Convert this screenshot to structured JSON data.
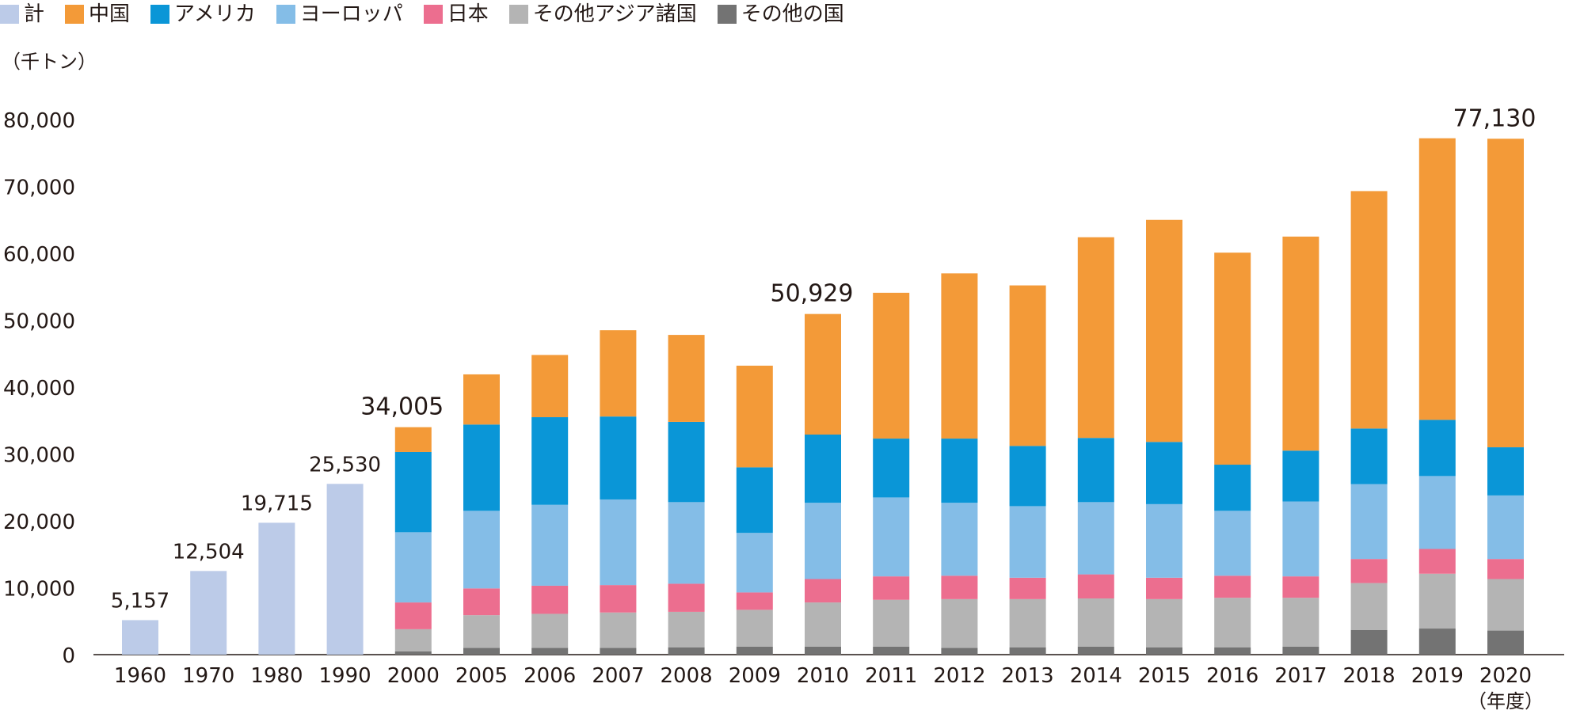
{
  "legend": [
    {
      "label": "計",
      "color": "#bccbe8"
    },
    {
      "label": "中国",
      "color": "#f39a38"
    },
    {
      "label": "アメリカ",
      "color": "#0a96d7"
    },
    {
      "label": "ヨーロッパ",
      "color": "#84bde7"
    },
    {
      "label": "日本",
      "color": "#ec6e8f"
    },
    {
      "label": "その他アジア諸国",
      "color": "#b4b4b4"
    },
    {
      "label": "その他の国",
      "color": "#737373"
    }
  ],
  "chart_data": {
    "type": "bar",
    "stacked": true,
    "unit_label": "（千トン）",
    "xlabel": "（年度）",
    "ylim": [
      0,
      80000
    ],
    "yticks": [
      0,
      10000,
      20000,
      30000,
      40000,
      50000,
      60000,
      70000,
      80000
    ],
    "ytick_labels": [
      "0",
      "10,000",
      "20,000",
      "30,000",
      "40,000",
      "50,000",
      "60,000",
      "70,000",
      "80,000"
    ],
    "categories": [
      "1960",
      "1970",
      "1980",
      "1990",
      "2000",
      "2005",
      "2006",
      "2007",
      "2008",
      "2009",
      "2010",
      "2011",
      "2012",
      "2013",
      "2014",
      "2015",
      "2016",
      "2017",
      "2018",
      "2019",
      "2020"
    ],
    "series": [
      {
        "name": "その他の国",
        "color": "#737373",
        "values": [
          null,
          null,
          null,
          null,
          500,
          1000,
          1000,
          1000,
          1100,
          1200,
          1200,
          1200,
          1000,
          1100,
          1200,
          1100,
          1100,
          1200,
          3700,
          3900,
          3600
        ]
      },
      {
        "name": "その他アジア諸国",
        "color": "#b4b4b4",
        "values": [
          null,
          null,
          null,
          null,
          3300,
          4900,
          5100,
          5300,
          5300,
          5500,
          6600,
          7000,
          7300,
          7200,
          7200,
          7200,
          7400,
          7300,
          7000,
          8200,
          7700
        ]
      },
      {
        "name": "日本",
        "color": "#ec6e8f",
        "values": [
          null,
          null,
          null,
          null,
          4000,
          4000,
          4200,
          4100,
          4200,
          2600,
          3500,
          3500,
          3500,
          3200,
          3600,
          3200,
          3300,
          3200,
          3600,
          3700,
          3000
        ]
      },
      {
        "name": "ヨーロッパ",
        "color": "#84bde7",
        "values": [
          null,
          null,
          null,
          null,
          10500,
          11600,
          12100,
          12800,
          12200,
          8900,
          11400,
          11800,
          10900,
          10700,
          10800,
          11000,
          9700,
          11200,
          11200,
          10900,
          9500
        ]
      },
      {
        "name": "アメリカ",
        "color": "#0a96d7",
        "values": [
          null,
          null,
          null,
          null,
          12000,
          12900,
          13100,
          12400,
          12000,
          9800,
          10200,
          8800,
          9600,
          9000,
          9600,
          9300,
          6900,
          7600,
          8300,
          8400,
          7200
        ]
      },
      {
        "name": "中国",
        "color": "#f39a38",
        "values": [
          null,
          null,
          null,
          null,
          3705,
          7500,
          9300,
          12900,
          13000,
          15200,
          18029,
          21800,
          24700,
          24000,
          30000,
          33200,
          31700,
          32000,
          35500,
          42100,
          46130
        ]
      },
      {
        "name": "計",
        "color": "#bccbe8",
        "values": [
          5157,
          12504,
          19715,
          25530,
          null,
          null,
          null,
          null,
          null,
          null,
          null,
          null,
          null,
          null,
          null,
          null,
          null,
          null,
          null,
          null,
          null
        ]
      }
    ],
    "total_labels": [
      {
        "category": "1960",
        "value": 5157,
        "text": "5,157"
      },
      {
        "category": "1970",
        "value": 12504,
        "text": "12,504"
      },
      {
        "category": "1980",
        "value": 19715,
        "text": "19,715"
      },
      {
        "category": "1990",
        "value": 25530,
        "text": "25,530"
      },
      {
        "category": "2000",
        "value": 34005,
        "text": "34,005"
      },
      {
        "category": "2010",
        "value": 50929,
        "text": "50,929"
      },
      {
        "category": "2020",
        "value": 77130,
        "text": "77,130"
      }
    ]
  }
}
